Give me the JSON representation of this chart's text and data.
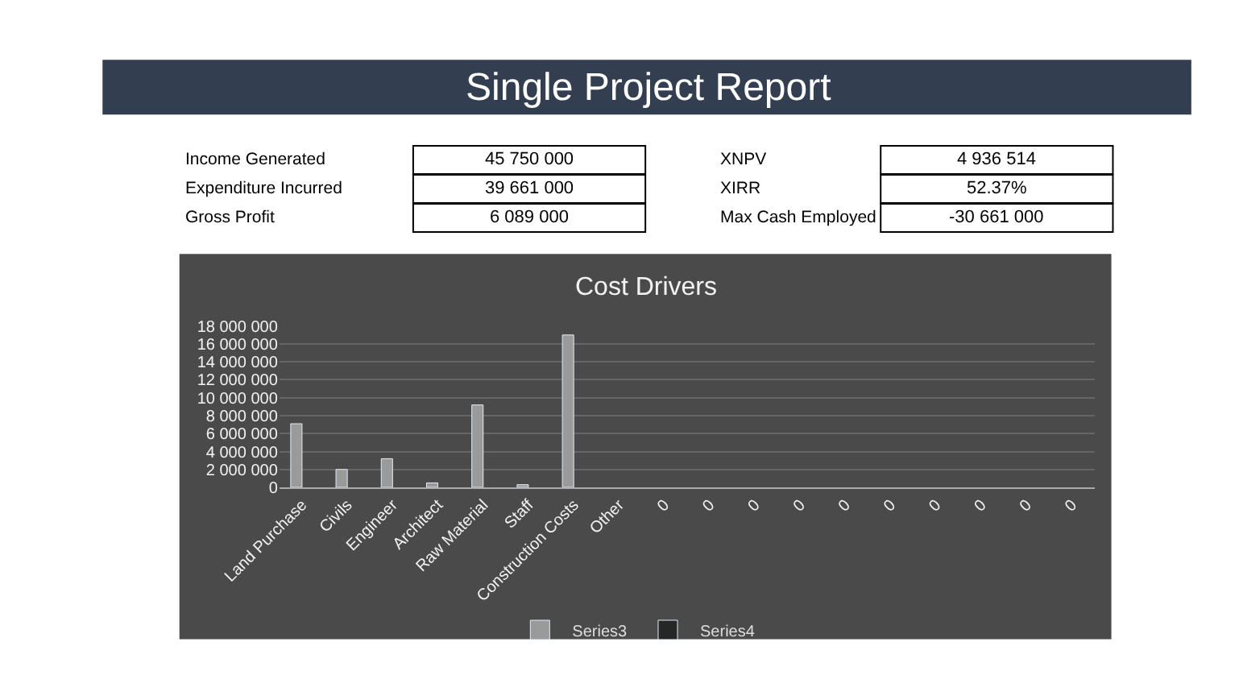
{
  "chart_data": [
    {
      "type": "other",
      "title": "Single Project Report",
      "annotations": [
        "Income Generated",
        "45 750 000",
        "Expenditure Incurred",
        "39 661 000",
        "Gross Profit",
        "6 089 000",
        "XNPV",
        "4 936 514",
        "XIRR",
        "52.37%",
        "Max Cash Employed",
        "-30 661 000"
      ]
    },
    {
      "type": "bar",
      "title": "Cost Drivers",
      "categories": [
        "Land Purchase",
        "Civils",
        "Engineer",
        "Architect",
        "Raw Material",
        "Staff",
        "Construction Costs",
        "Other",
        "0",
        "0",
        "0",
        "0",
        "0",
        "0",
        "0",
        "0",
        "0",
        "0"
      ],
      "series": [
        {
          "name": "Series3",
          "color": "#9a9a9a",
          "values": [
            7100000,
            2000000,
            3200000,
            500000,
            9200000,
            300000,
            17000000,
            null,
            null,
            null,
            null,
            null,
            null,
            null,
            null,
            null,
            null,
            null
          ]
        },
        {
          "name": "Series4",
          "color": "#262626",
          "values": [
            null,
            null,
            null,
            null,
            null,
            null,
            null,
            null,
            null,
            null,
            null,
            null,
            null,
            null,
            null,
            null,
            null,
            null
          ]
        }
      ],
      "ylim": [
        0,
        18000000
      ],
      "yticks": [
        {
          "value": 0,
          "label": "0"
        },
        {
          "value": 2000000,
          "label": "2 000 000"
        },
        {
          "value": 4000000,
          "label": "4 000 000"
        },
        {
          "value": 6000000,
          "label": "6 000 000"
        },
        {
          "value": 8000000,
          "label": "8 000 000"
        },
        {
          "value": 10000000,
          "label": "10 000 000"
        },
        {
          "value": 12000000,
          "label": "12 000 000"
        },
        {
          "value": 14000000,
          "label": "14 000 000"
        },
        {
          "value": 16000000,
          "label": "16 000 000"
        },
        {
          "value": 18000000,
          "label": "18 000 000"
        }
      ],
      "grid": "y",
      "legend": "bottom"
    }
  ]
}
